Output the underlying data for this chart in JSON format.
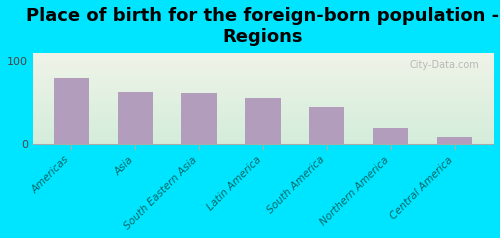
{
  "title": "Place of birth for the foreign-born population -\nRegions",
  "categories": [
    "Americas",
    "Asia",
    "South Eastern Asia",
    "Latin America",
    "South America",
    "Northern America",
    "Central America"
  ],
  "values": [
    80,
    63,
    62,
    55,
    45,
    20,
    8
  ],
  "bar_color": "#b39dbd",
  "background_color": "#00e5ff",
  "plot_bg_top": "#f0f4e8",
  "plot_bg_bottom": "#d4edda",
  "ylim": [
    0,
    100
  ],
  "yticks": [
    0,
    100
  ],
  "title_fontsize": 13,
  "tick_label_fontsize": 7.5,
  "watermark": "City-Data.com"
}
